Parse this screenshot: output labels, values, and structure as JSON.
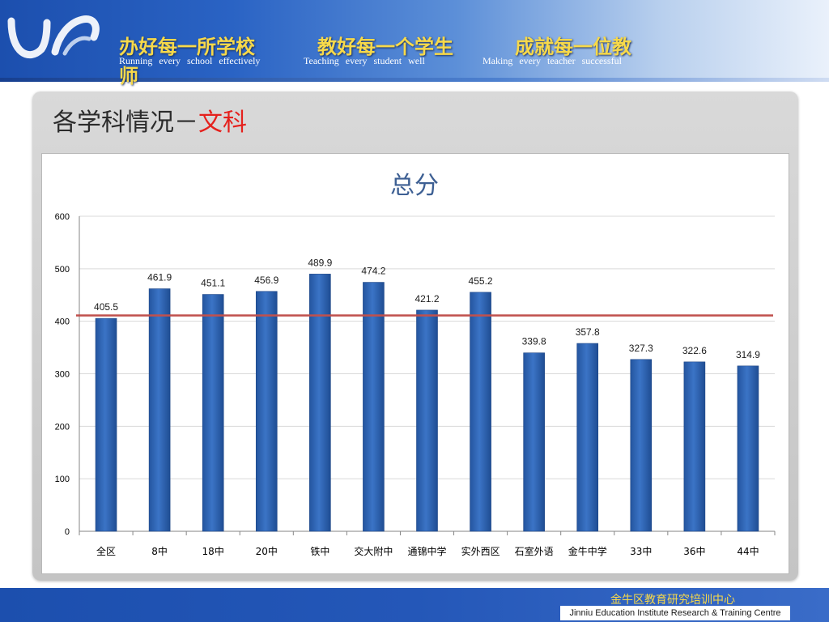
{
  "header": {
    "mottos_cn": [
      "办好每一所学校",
      "教好每一个学生",
      "成就每一位教"
    ],
    "motto_wrap": "师",
    "mottos_en": [
      "Running every school effectively",
      "Teaching every student well",
      "Making every teacher successful"
    ]
  },
  "section": {
    "title_prefix": "各学科情况－",
    "title_highlight": "文科"
  },
  "footer": {
    "org_cn": "金牛区教育研究培训中心",
    "org_en": "Jinniu Education Institute Research & Training Centre"
  },
  "colors": {
    "bar": "#3b74c6",
    "average_line": "#c0504d",
    "title_accent": "#e5211d",
    "motto": "#f7d94a"
  },
  "chart_data": {
    "type": "bar",
    "title": "总分",
    "categories": [
      "全区",
      "8中",
      "18中",
      "20中",
      "铁中",
      "交大附中",
      "通锦中学",
      "实外西区",
      "石室外语",
      "金牛中学",
      "33中",
      "36中",
      "44中"
    ],
    "values": [
      405.5,
      461.9,
      451.1,
      456.9,
      489.9,
      474.2,
      421.2,
      455.2,
      339.8,
      357.8,
      327.3,
      322.6,
      314.9
    ],
    "data_labels": [
      "405.5",
      "461.9",
      "451.1",
      "456.9",
      "489.9",
      "474.2",
      "421.2",
      "455.2",
      "339.8",
      "357.8",
      "327.3",
      "322.6",
      "314.9"
    ],
    "ylim": [
      0,
      600
    ],
    "yticks": [
      0,
      100,
      200,
      300,
      400,
      500,
      600
    ],
    "reference_line": 411,
    "grid": true,
    "legend": "none"
  }
}
